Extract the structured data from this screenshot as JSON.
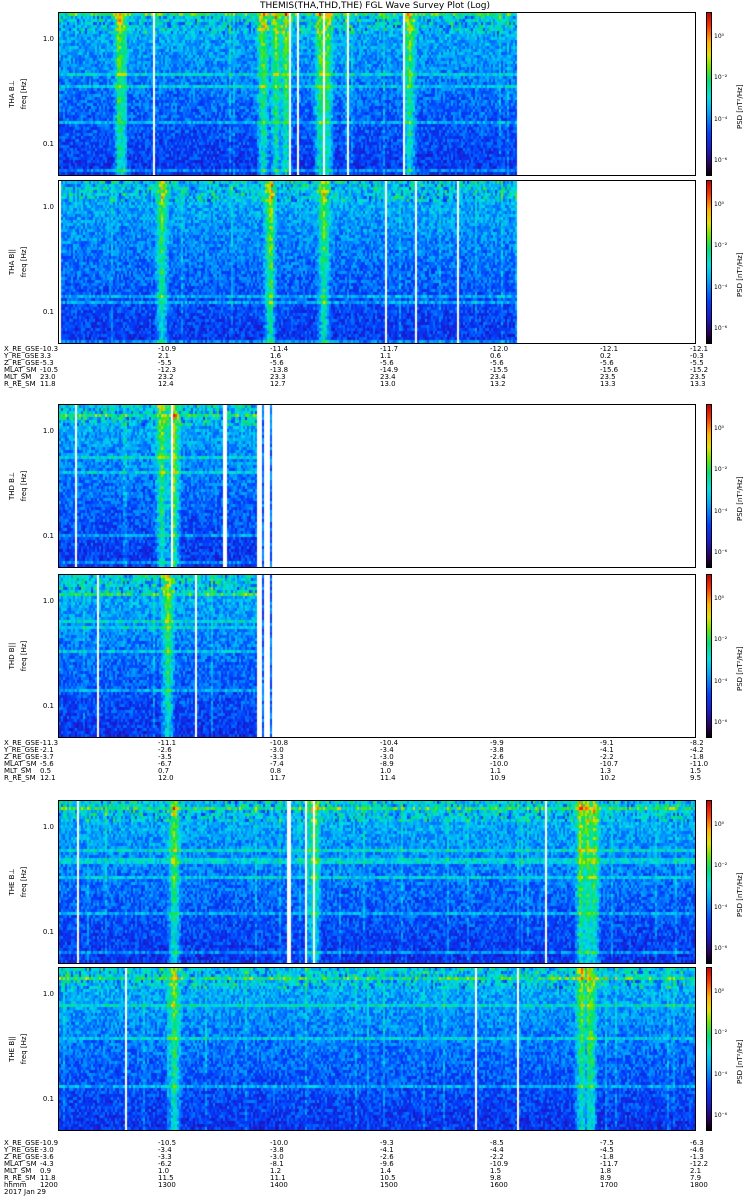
{
  "title": "THEMIS(THA,THD,THE) FGL Wave Survey Plot (Log)",
  "colorbar_label": "PSD [nT²/Hz]",
  "chart_data": {
    "type": "heatmap",
    "title": "THEMIS(THA,THD,THE) FGL Wave Survey Plot (Log)",
    "yscale": "log",
    "ylim_hz": [
      0.05,
      1.8
    ],
    "y_ticks": [
      "1.0",
      "0.1"
    ],
    "x_ticks_hhmm": [
      "1200",
      "1300",
      "1400",
      "1500",
      "1600",
      "1700",
      "1800"
    ],
    "date": "2017 Jan 29",
    "panels": [
      {
        "probe": "THA",
        "label": "THA B⊥",
        "ylabel": "freq [Hz]",
        "data_end_fraction": 0.72,
        "cbar_ticks": [
          "10⁰",
          "10⁻²",
          "10⁻⁴",
          "10⁻⁶"
        ],
        "bright_bands": [
          0.095,
          0.32,
          0.34,
          0.355,
          0.41,
          0.42,
          0.55
        ]
      },
      {
        "probe": "THA",
        "label": "THA B||",
        "ylabel": "freq [Hz]",
        "data_end_fraction": 0.72,
        "cbar_ticks": [
          "10⁰",
          "10⁻²",
          "10⁻⁴",
          "10⁻⁶"
        ],
        "bright_bands": [
          0.16,
          0.33,
          0.415
        ]
      },
      {
        "probe": "THD",
        "label": "THD B⊥",
        "ylabel": "freq [Hz]",
        "data_end_fraction": 0.31,
        "cbar_ticks": [
          "10⁰",
          "10⁻²",
          "10⁻⁴",
          "10⁻⁶"
        ],
        "bright_bands": [
          0.16,
          0.18
        ]
      },
      {
        "probe": "THD",
        "label": "THD B||",
        "ylabel": "freq [Hz]",
        "data_end_fraction": 0.31,
        "cbar_ticks": [
          "10⁰",
          "10⁻²",
          "10⁻⁴",
          "10⁻⁶"
        ],
        "bright_bands": [
          0.17
        ]
      },
      {
        "probe": "THE",
        "label": "THE B⊥",
        "ylabel": "freq [Hz]",
        "data_end_fraction": 1.0,
        "cbar_ticks": [
          "10⁰",
          "10⁻²",
          "10⁻⁴",
          "10⁻⁶"
        ],
        "bright_bands": [
          0.18,
          0.4,
          0.82,
          0.83,
          0.84
        ]
      },
      {
        "probe": "THE",
        "label": "THE B||",
        "ylabel": "freq [Hz]",
        "data_end_fraction": 1.0,
        "cbar_ticks": [
          "10⁰",
          "10⁻²",
          "10⁻⁴",
          "10⁻⁶"
        ],
        "bright_bands": [
          0.18,
          0.82,
          0.835
        ]
      }
    ]
  },
  "ephemeris": [
    {
      "rows": [
        {
          "label": "X_RE_GSE",
          "values": [
            "-10.3",
            "-10.9",
            "-11.4",
            "-11.7",
            "-12.0",
            "-12.1",
            "-12.1"
          ]
        },
        {
          "label": "Y_RE_GSE",
          "values": [
            "3.3",
            "2.1",
            "1.6",
            "1.1",
            "0.6",
            "0.2",
            "-0.3"
          ]
        },
        {
          "label": "Z_RE_GSE",
          "values": [
            "-5.3",
            "-5.5",
            "-5.6",
            "-5.6",
            "-5.6",
            "-5.6",
            "-5.5"
          ]
        },
        {
          "label": "MLAT_SM",
          "values": [
            "-10.5",
            "-12.3",
            "-13.8",
            "-14.9",
            "-15.5",
            "-15.6",
            "-15.2"
          ]
        },
        {
          "label": "MLT_SM",
          "values": [
            "23.0",
            "23.2",
            "23.3",
            "23.4",
            "23.4",
            "23.5",
            "23.5"
          ]
        },
        {
          "label": "R_RE_SM",
          "values": [
            "11.8",
            "12.4",
            "12.7",
            "13.0",
            "13.2",
            "13.3",
            "13.3"
          ]
        }
      ]
    },
    {
      "rows": [
        {
          "label": "X_RE_GSE",
          "values": [
            "-11.3",
            "-11.1",
            "-10.8",
            "-10.4",
            "-9.9",
            "-9.1",
            "-8.2"
          ]
        },
        {
          "label": "Y_RE_GSE",
          "values": [
            "-2.1",
            "-2.6",
            "-3.0",
            "-3.4",
            "-3.8",
            "-4.1",
            "-4.2"
          ]
        },
        {
          "label": "Z_RE_GSE",
          "values": [
            "-3.7",
            "-3.5",
            "-3.3",
            "-3.0",
            "-2.6",
            "-2.2",
            "-1.8"
          ]
        },
        {
          "label": "MLAT_SM",
          "values": [
            "-5.6",
            "-6.7",
            "-7.4",
            "-8.9",
            "-10.0",
            "-10.7",
            "-11.0"
          ]
        },
        {
          "label": "MLT_SM",
          "values": [
            "0.5",
            "0.7",
            "0.8",
            "1.0",
            "1.1",
            "1.3",
            "1.5"
          ]
        },
        {
          "label": "R_RE_SM",
          "values": [
            "12.1",
            "12.0",
            "11.7",
            "11.4",
            "10.9",
            "10.2",
            "9.5"
          ]
        }
      ]
    },
    {
      "rows": [
        {
          "label": "X_RE_GSE",
          "values": [
            "-10.9",
            "-10.5",
            "-10.0",
            "-9.3",
            "-8.5",
            "-7.5",
            "-6.3"
          ]
        },
        {
          "label": "Y_RE_GSE",
          "values": [
            "-3.0",
            "-3.4",
            "-3.8",
            "-4.1",
            "-4.4",
            "-4.5",
            "-4.6"
          ]
        },
        {
          "label": "Z_RE_GSE",
          "values": [
            "-3.6",
            "-3.3",
            "-3.0",
            "-2.6",
            "-2.2",
            "-1.8",
            "-1.3"
          ]
        },
        {
          "label": "MLAT_SM",
          "values": [
            "-4.3",
            "-6.2",
            "-8.1",
            "-9.6",
            "-10.9",
            "-11.7",
            "-12.2"
          ]
        },
        {
          "label": "MLT_SM",
          "values": [
            "0.9",
            "1.0",
            "1.2",
            "1.4",
            "1.5",
            "1.8",
            "2.1"
          ]
        },
        {
          "label": "R_RE_SM",
          "values": [
            "11.8",
            "11.5",
            "11.1",
            "10.5",
            "9.8",
            "8.9",
            "7.9"
          ]
        },
        {
          "label": "hhmm",
          "values": [
            "1200",
            "1300",
            "1400",
            "1500",
            "1600",
            "1700",
            "1800"
          ]
        }
      ],
      "date": "2017 Jan 29"
    }
  ]
}
